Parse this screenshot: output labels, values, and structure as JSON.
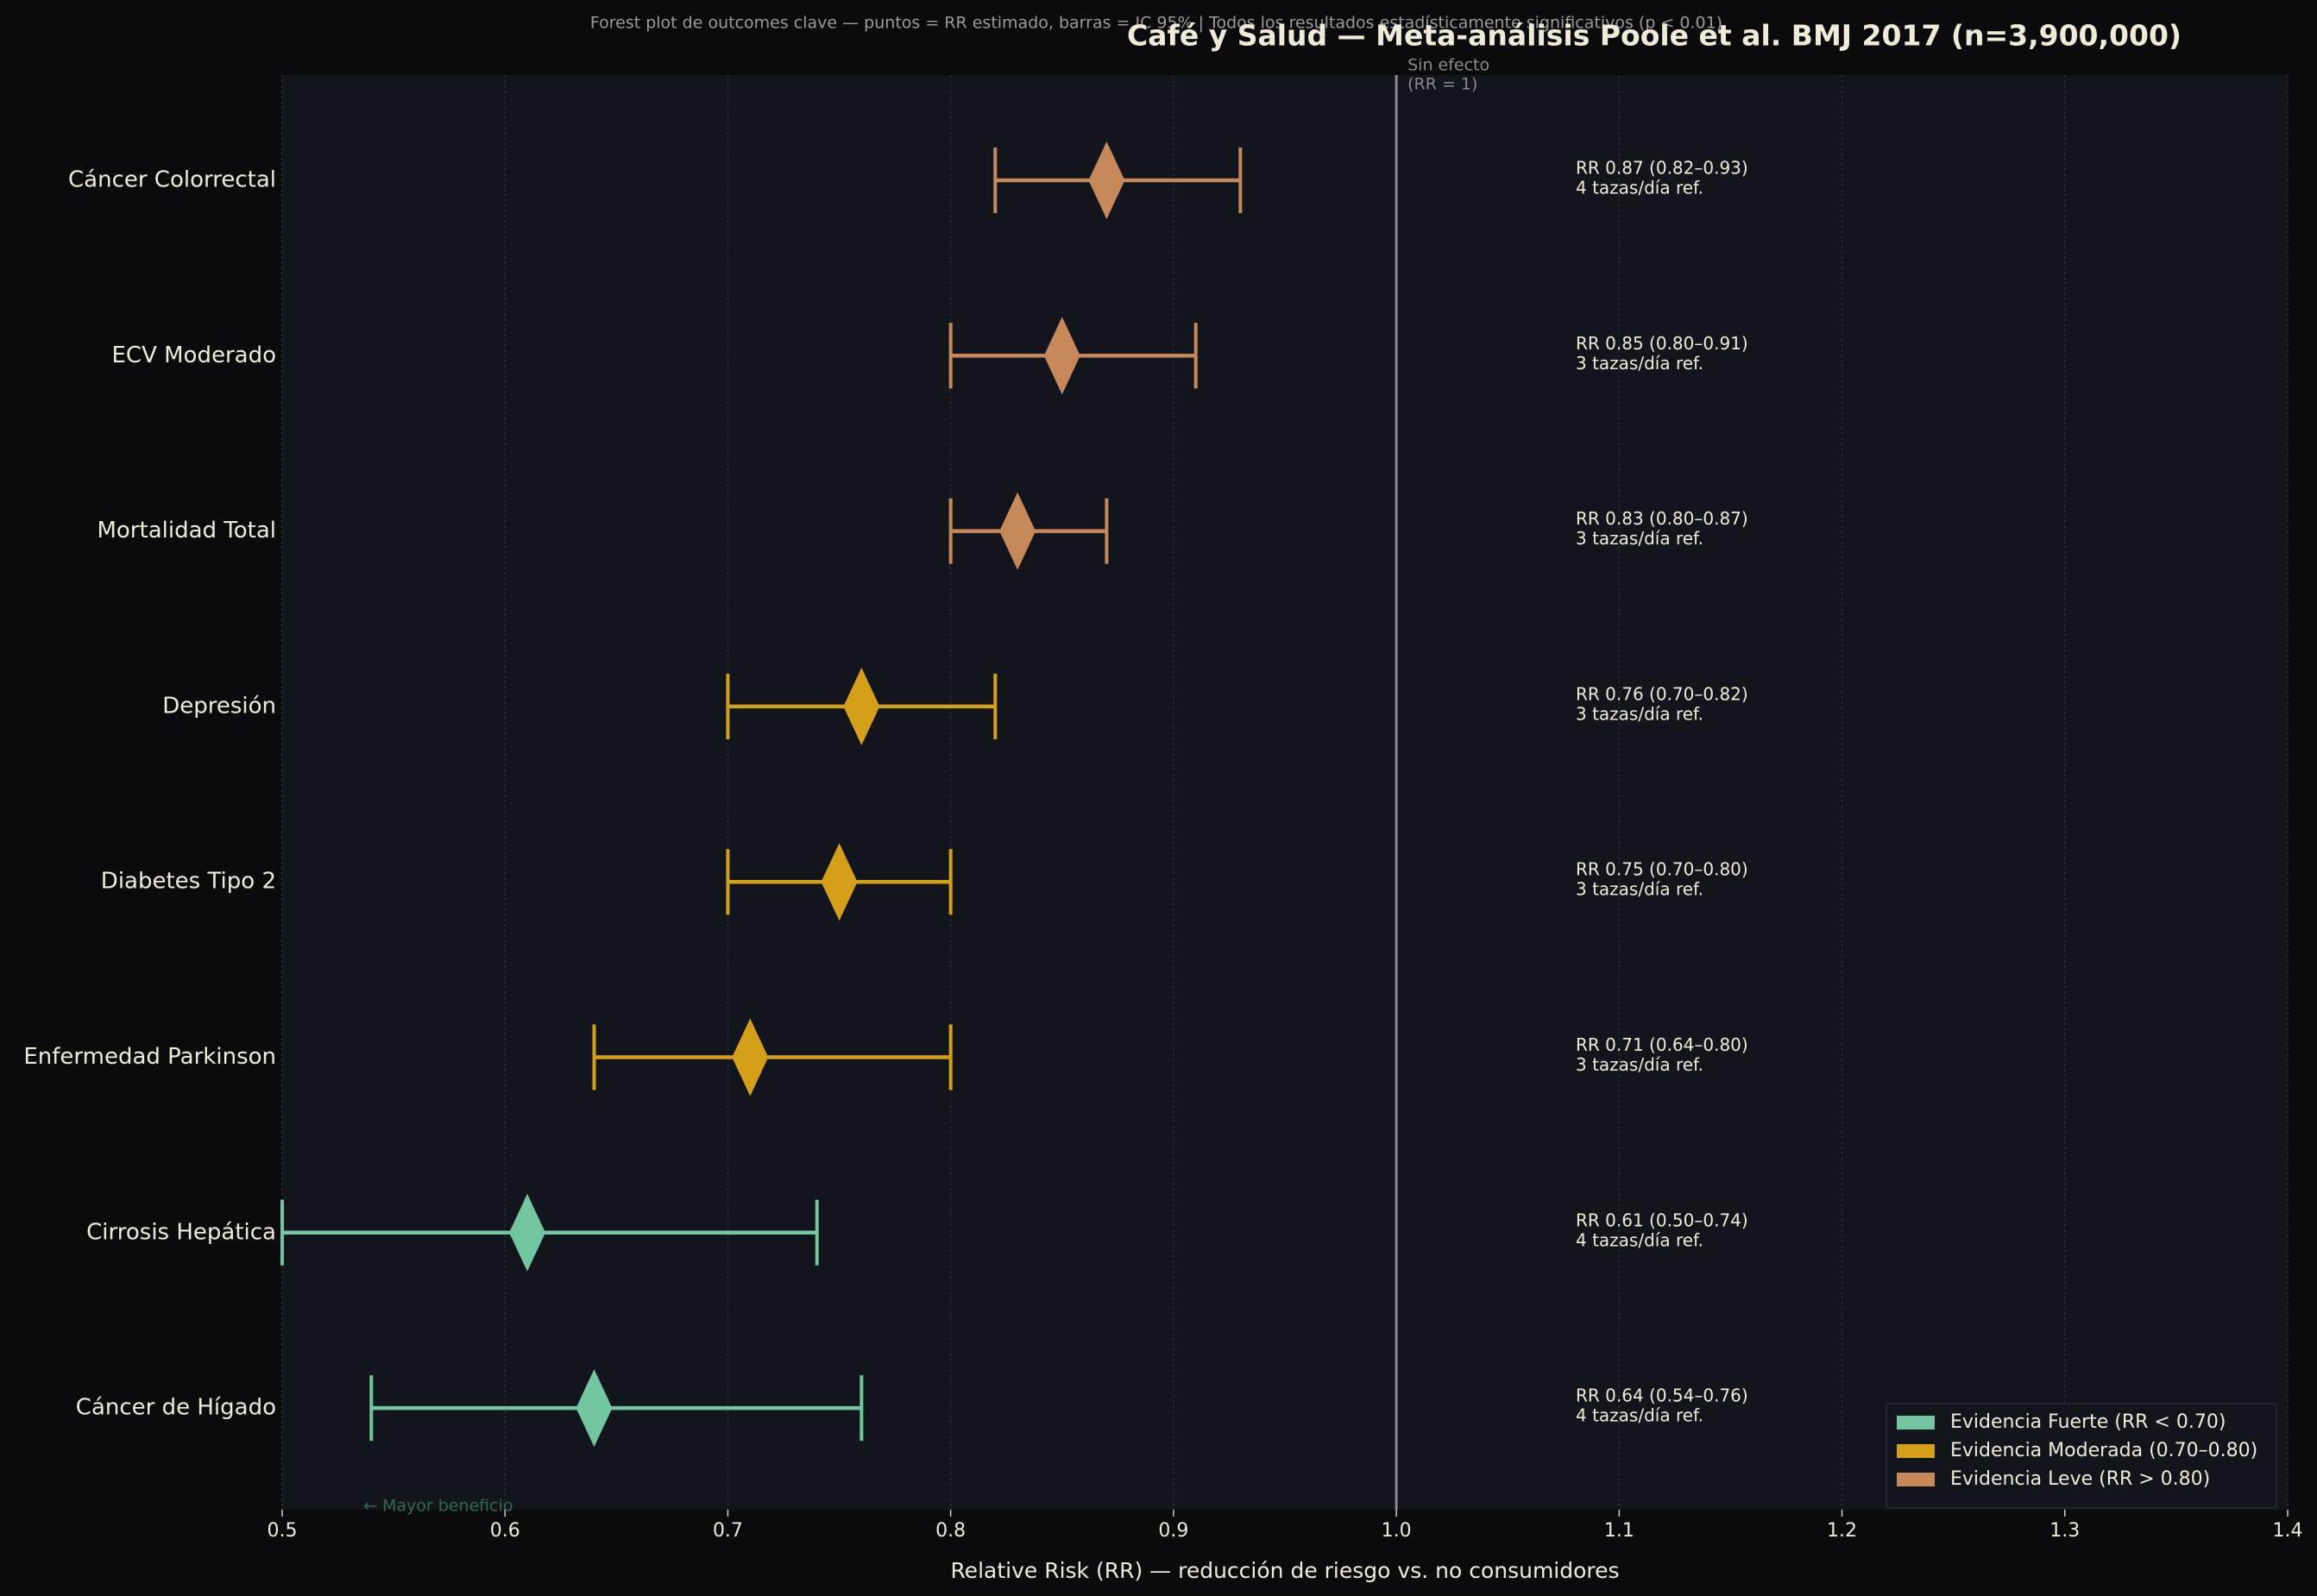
{
  "chart_data": {
    "type": "forest",
    "title": "Café y Salud — Meta-análisis Poole et al. BMJ 2017 (n=3,900,000)",
    "subtitle": "Forest plot de outcomes clave — puntos = RR estimado, barras = IC 95%  |  Todos los resultados estadísticamente significativos (p < 0.01)",
    "x_label": "Relative Risk (RR) — reducción de riesgo vs. no consumidores",
    "categories": [
      "Cáncer Colorrectal",
      "ECV Moderado",
      "Mortalidad Total",
      "Depresión",
      "Diabetes Tipo 2",
      "Enfermedad Parkinson",
      "Cirrosis Hepática",
      "Cáncer de Hígado"
    ],
    "value_labels": [
      "RR 0.87  (0.82–0.93)",
      "RR 0.85  (0.80–0.91)",
      "RR 0.83  (0.80–0.87)",
      "RR 0.76  (0.70–0.82)",
      "RR 0.75  (0.70–0.80)",
      "RR 0.71  (0.64–0.80)",
      "RR 0.61  (0.50–0.74)",
      "RR 0.64  (0.54–0.76)"
    ],
    "dose_labels": [
      "4 tazas/día ref.",
      "3 tazas/día ref.",
      "3 tazas/día ref.",
      "3 tazas/día ref.",
      "3 tazas/día ref.",
      "3 tazas/día ref.",
      "4 tazas/día ref.",
      "4 tazas/día ref."
    ],
    "series": [
      {
        "name": "Evidencia Fuerte (RR < 0.70)",
        "color": "#72c7a0",
        "values": [
          null,
          null,
          null,
          null,
          null,
          null,
          0.61,
          0.64
        ],
        "lower": [
          null,
          null,
          null,
          null,
          null,
          null,
          0.5,
          0.54
        ],
        "upper": [
          null,
          null,
          null,
          null,
          null,
          null,
          0.74,
          0.76
        ]
      },
      {
        "name": "Evidencia Moderada (0.70–0.80)",
        "color": "#d4a017",
        "values": [
          null,
          null,
          null,
          0.76,
          0.75,
          0.71,
          null,
          null
        ],
        "lower": [
          null,
          null,
          null,
          0.7,
          0.7,
          0.64,
          null,
          null
        ],
        "upper": [
          null,
          null,
          null,
          0.82,
          0.8,
          0.8,
          null,
          null
        ]
      },
      {
        "name": "Evidencia Leve (RR > 0.80)",
        "color": "#c8895a",
        "values": [
          0.87,
          0.85,
          0.83,
          null,
          null,
          null,
          null,
          null
        ],
        "lower": [
          0.82,
          0.8,
          0.8,
          null,
          null,
          null,
          null,
          null
        ],
        "upper": [
          0.93,
          0.91,
          0.87,
          null,
          null,
          null,
          null,
          null
        ]
      }
    ],
    "xlim": [
      0.5,
      1.4
    ],
    "xticks": [
      0.5,
      0.6,
      0.7,
      0.8,
      0.9,
      {
        "value": 1.0,
        "label": "1.0"
      },
      1.1,
      1.2,
      1.3,
      1.4
    ],
    "grid": true,
    "reference": {
      "value": 1,
      "label_lines": [
        "Sin efecto",
        "(RR = 1)"
      ]
    },
    "annotation": {
      "text": "← Mayor beneficio",
      "x": 0.57
    },
    "legend": "lower right"
  }
}
